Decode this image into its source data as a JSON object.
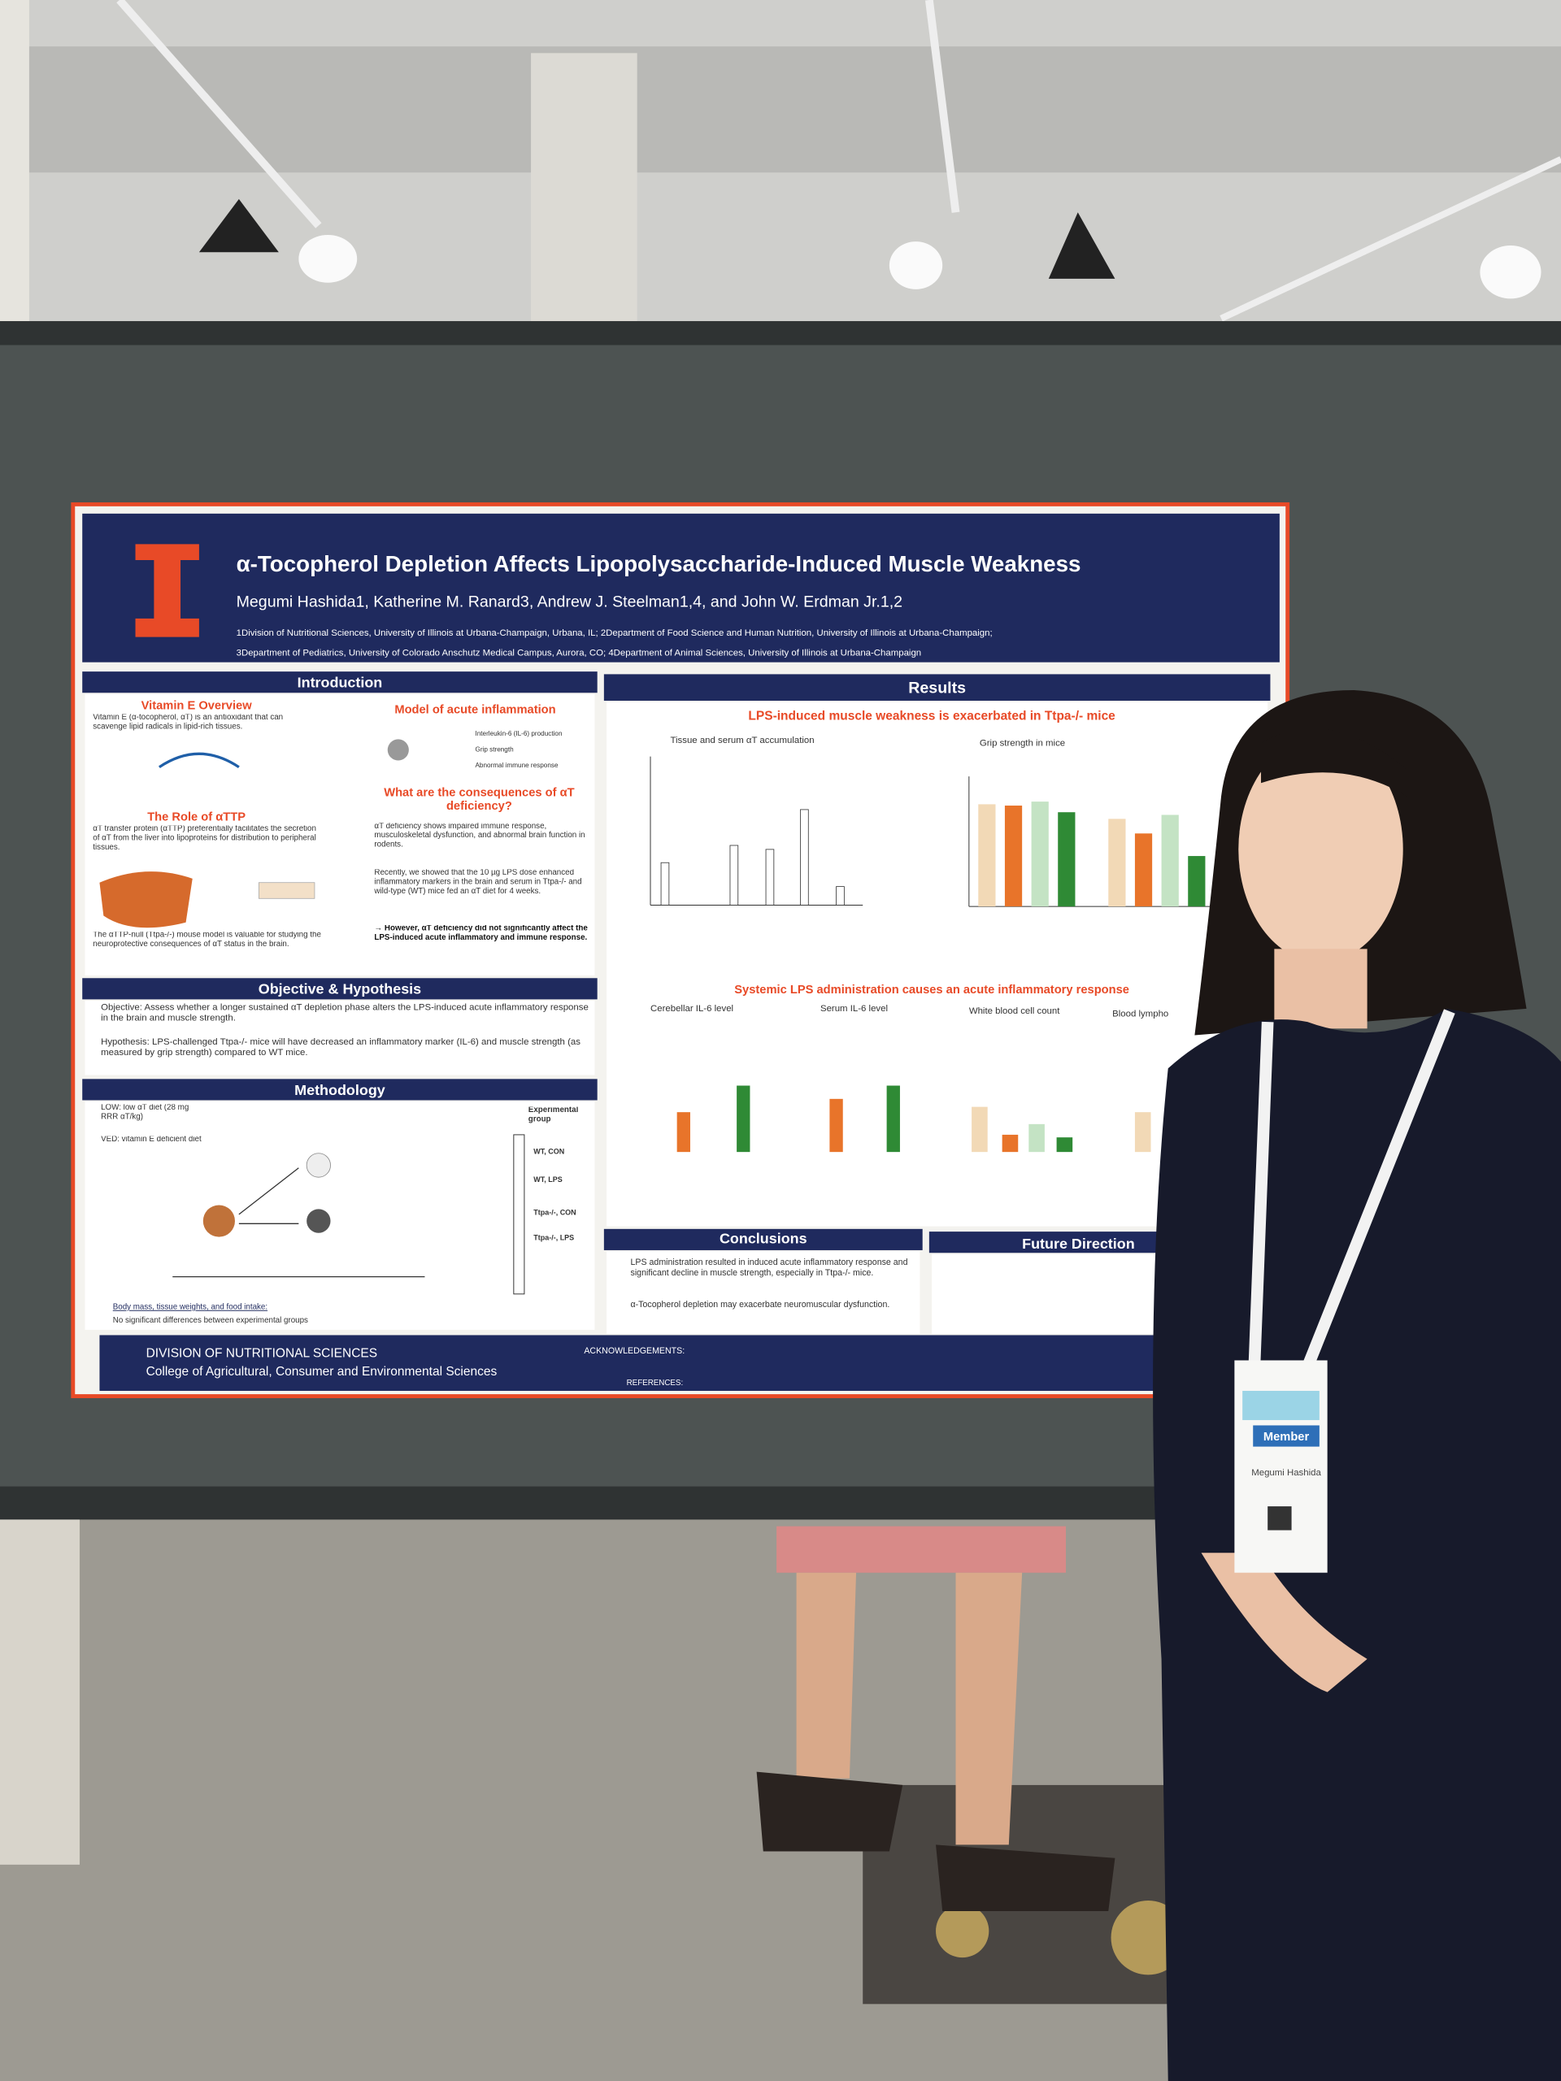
{
  "poster": {
    "title": "α-Tocopherol Depletion Affects Lipopolysaccharide-Induced Muscle Weakness",
    "authors": "Megumi Hashida1, Katherine M. Ranard3, Andrew J. Steelman1,4, and John W. Erdman Jr.1,2",
    "affiliations": [
      "1Division of Nutritional Sciences, University of Illinois at Urbana-Champaign, Urbana, IL; 2Department of Food Science and Human Nutrition, University of Illinois at Urbana-Champaign;",
      "3Department of Pediatrics, University of Colorado Anschutz Medical Campus, Aurora, CO; 4Department of Animal Sciences, University of Illinois at Urbana-Champaign"
    ],
    "introduction": {
      "heading": "Introduction",
      "vitamin_e_heading": "Vitamin E Overview",
      "vitamin_e_text": "Vitamin E (α-tocopherol, αT) is an antioxidant that can scavenge lipid radicals in lipid-rich tissues.",
      "model_heading": "Model of acute inflammation",
      "model_items": [
        "Interleukin-6 (IL-6) production",
        "Grip strength",
        "Abnormal immune response"
      ],
      "attp_heading": "The Role of αTTP",
      "attp_text": "αT transfer protein (αTTP) preferentially facilitates the secretion of αT from the liver into lipoproteins for distribution to peripheral tissues.",
      "null_text": "The αTTP-null (Ttpa-/-) mouse model is valuable for studying the neuroprotective consequences of αT status in the brain.",
      "question": "What are the consequences of αT deficiency?",
      "bullets": [
        "αT deficiency shows impaired immune response, musculoskeletal dysfunction, and abnormal brain function in rodents.",
        "Recently, we showed that the 10 µg LPS dose enhanced inflammatory markers in the brain and serum in Ttpa-/- and wild-type (WT) mice fed an αT diet for 4 weeks."
      ],
      "conclusion": "→ However, αT deficiency did not significantly affect the LPS-induced acute inflammatory and immune response."
    },
    "objective": {
      "heading": "Objective &  Hypothesis",
      "objective": "Objective: Assess whether a longer sustained αT depletion phase alters the LPS-induced acute inflammatory response in the brain and muscle strength.",
      "hypothesis": "Hypothesis: LPS-challenged Ttpa-/- mice will have decreased an inflammatory marker (IL-6) and muscle strength (as measured by grip strength) compared to WT mice."
    },
    "methodology": {
      "heading": "Methodology",
      "low": "LOW: low αT diet (28 mg RRR αT/kg)",
      "ved": "VED: vitamin E deficient diet",
      "group_heading": "Experimental group",
      "groups": [
        "WT, CON",
        "WT, LPS",
        "Ttpa-/-, CON",
        "Ttpa-/-, LPS"
      ],
      "note": "Body mass, tissue weights, and food intake:",
      "note_text": "No significant differences between experimental groups"
    },
    "results": {
      "heading": "Results",
      "subtitle_1": "LPS-induced muscle weakness is exacerbated in Ttpa-/- mice",
      "panel_a": "Tissue and serum αT accumulation",
      "panel_b": "Grip strength in mice",
      "subtitle_2": "Systemic LPS administration causes an acute inflammatory response",
      "panels": [
        "Cerebellar IL-6 level",
        "Serum IL-6 level",
        "White blood cell count",
        "Blood lympho"
      ]
    },
    "conclusions": {
      "heading": "Conclusions",
      "bullets": [
        "LPS administration resulted in induced acute inflammatory response and significant decline in muscle strength, especially in Ttpa-/- mice.",
        "α-Tocopherol depletion may exacerbate neuromuscular dysfunction."
      ]
    },
    "future": {
      "heading": "Future Direction"
    },
    "footer": {
      "division": "DIVISION OF NUTRITIONAL SCIENCES",
      "college": "College of Agricultural, Consumer and Environmental Sciences",
      "acknowledgements": "ACKNOWLEDGEMENTS:",
      "references": "REFERENCES:"
    }
  },
  "badge": {
    "membership": "Member",
    "name": "Megumi Hashida"
  }
}
